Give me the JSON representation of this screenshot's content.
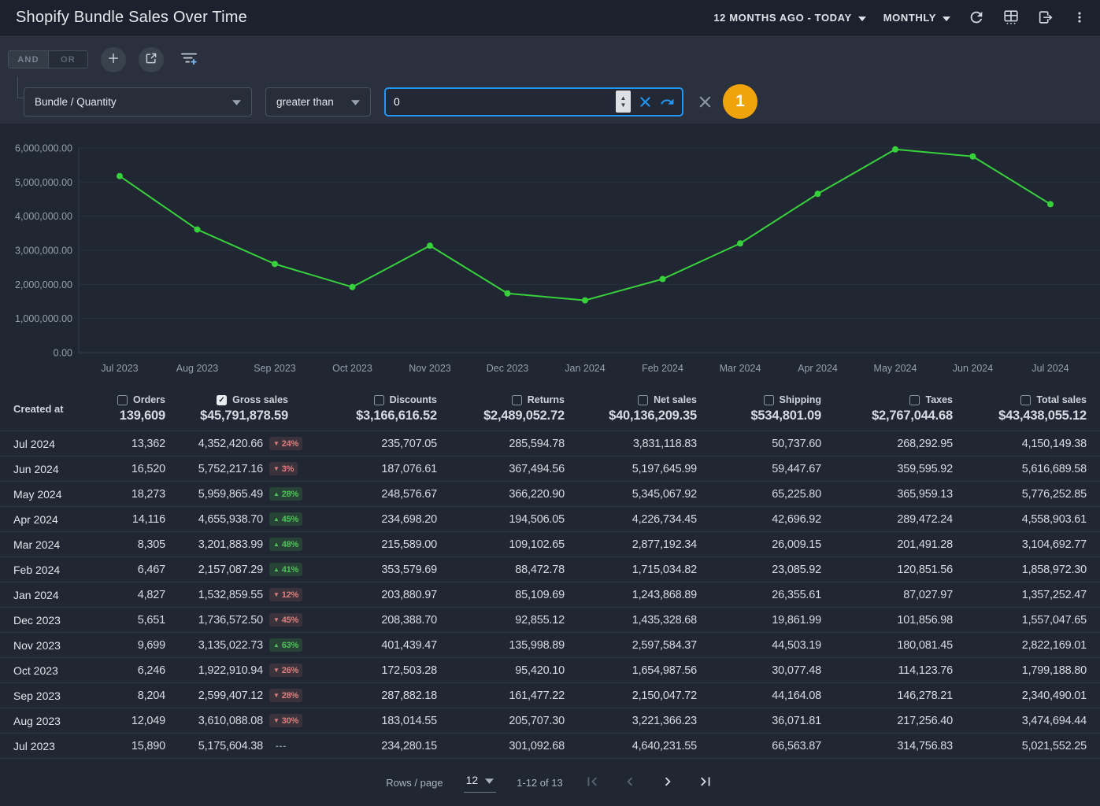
{
  "topbar": {
    "title": "Shopify Bundle Sales Over Time",
    "date_range": "12 MONTHS AGO - TODAY",
    "granularity": "MONTHLY"
  },
  "filter_bar": {
    "and_label": "AND",
    "or_label": "OR",
    "field_select": "Bundle / Quantity",
    "operator_select": "greater than",
    "value_input": "0",
    "active_filter_count": "1"
  },
  "chart_data": {
    "type": "line",
    "title": "Shopify Bundle Sales Over Time",
    "x": [
      "Jul 2023",
      "Aug 2023",
      "Sep 2023",
      "Oct 2023",
      "Nov 2023",
      "Dec 2023",
      "Jan 2024",
      "Feb 2024",
      "Mar 2024",
      "Apr 2024",
      "May 2024",
      "Jun 2024",
      "Jul 2024"
    ],
    "series": [
      {
        "name": "Gross sales",
        "color": "#37d13c",
        "values": [
          5175604.38,
          3610088.08,
          2599407.12,
          1922910.94,
          3135022.73,
          1736572.5,
          1532859.55,
          2157087.29,
          3201883.99,
          4655938.7,
          5959865.49,
          5752217.16,
          4352420.66
        ]
      }
    ],
    "ylim": [
      0,
      6000000
    ],
    "y_ticks": [
      "6,000,000.00",
      "5,000,000.00",
      "4,000,000.00",
      "3,000,000.00",
      "2,000,000.00",
      "1,000,000.00",
      "0.00"
    ],
    "grid": true,
    "legend": "none"
  },
  "table": {
    "row_header": "Created at",
    "no_change_placeholder": "---",
    "columns": [
      {
        "key": "orders",
        "label": "Orders",
        "total": "139,609",
        "checked": false
      },
      {
        "key": "gross_sales",
        "label": "Gross sales",
        "total": "$45,791,878.59",
        "checked": true
      },
      {
        "key": "discounts",
        "label": "Discounts",
        "total": "$3,166,616.52",
        "checked": false
      },
      {
        "key": "returns",
        "label": "Returns",
        "total": "$2,489,052.72",
        "checked": false
      },
      {
        "key": "net_sales",
        "label": "Net sales",
        "total": "$40,136,209.35",
        "checked": false
      },
      {
        "key": "shipping",
        "label": "Shipping",
        "total": "$534,801.09",
        "checked": false
      },
      {
        "key": "taxes",
        "label": "Taxes",
        "total": "$2,767,044.68",
        "checked": false
      },
      {
        "key": "total_sales",
        "label": "Total sales",
        "total": "$43,438,055.12",
        "checked": false
      }
    ],
    "rows": [
      {
        "created_at": "Jul 2024",
        "orders": "13,362",
        "gross_sales": "4,352,420.66",
        "change": {
          "dir": "down",
          "label": "24%"
        },
        "discounts": "235,707.05",
        "returns": "285,594.78",
        "net_sales": "3,831,118.83",
        "shipping": "50,737.60",
        "taxes": "268,292.95",
        "total_sales": "4,150,149.38"
      },
      {
        "created_at": "Jun 2024",
        "orders": "16,520",
        "gross_sales": "5,752,217.16",
        "change": {
          "dir": "down",
          "label": "3%"
        },
        "discounts": "187,076.61",
        "returns": "367,494.56",
        "net_sales": "5,197,645.99",
        "shipping": "59,447.67",
        "taxes": "359,595.92",
        "total_sales": "5,616,689.58"
      },
      {
        "created_at": "May 2024",
        "orders": "18,273",
        "gross_sales": "5,959,865.49",
        "change": {
          "dir": "up",
          "label": "28%"
        },
        "discounts": "248,576.67",
        "returns": "366,220.90",
        "net_sales": "5,345,067.92",
        "shipping": "65,225.80",
        "taxes": "365,959.13",
        "total_sales": "5,776,252.85"
      },
      {
        "created_at": "Apr 2024",
        "orders": "14,116",
        "gross_sales": "4,655,938.70",
        "change": {
          "dir": "up",
          "label": "45%"
        },
        "discounts": "234,698.20",
        "returns": "194,506.05",
        "net_sales": "4,226,734.45",
        "shipping": "42,696.92",
        "taxes": "289,472.24",
        "total_sales": "4,558,903.61"
      },
      {
        "created_at": "Mar 2024",
        "orders": "8,305",
        "gross_sales": "3,201,883.99",
        "change": {
          "dir": "up",
          "label": "48%"
        },
        "discounts": "215,589.00",
        "returns": "109,102.65",
        "net_sales": "2,877,192.34",
        "shipping": "26,009.15",
        "taxes": "201,491.28",
        "total_sales": "3,104,692.77"
      },
      {
        "created_at": "Feb 2024",
        "orders": "6,467",
        "gross_sales": "2,157,087.29",
        "change": {
          "dir": "up",
          "label": "41%"
        },
        "discounts": "353,579.69",
        "returns": "88,472.78",
        "net_sales": "1,715,034.82",
        "shipping": "23,085.92",
        "taxes": "120,851.56",
        "total_sales": "1,858,972.30"
      },
      {
        "created_at": "Jan 2024",
        "orders": "4,827",
        "gross_sales": "1,532,859.55",
        "change": {
          "dir": "down",
          "label": "12%"
        },
        "discounts": "203,880.97",
        "returns": "85,109.69",
        "net_sales": "1,243,868.89",
        "shipping": "26,355.61",
        "taxes": "87,027.97",
        "total_sales": "1,357,252.47"
      },
      {
        "created_at": "Dec 2023",
        "orders": "5,651",
        "gross_sales": "1,736,572.50",
        "change": {
          "dir": "down",
          "label": "45%"
        },
        "discounts": "208,388.70",
        "returns": "92,855.12",
        "net_sales": "1,435,328.68",
        "shipping": "19,861.99",
        "taxes": "101,856.98",
        "total_sales": "1,557,047.65"
      },
      {
        "created_at": "Nov 2023",
        "orders": "9,699",
        "gross_sales": "3,135,022.73",
        "change": {
          "dir": "up",
          "label": "63%"
        },
        "discounts": "401,439.47",
        "returns": "135,998.89",
        "net_sales": "2,597,584.37",
        "shipping": "44,503.19",
        "taxes": "180,081.45",
        "total_sales": "2,822,169.01"
      },
      {
        "created_at": "Oct 2023",
        "orders": "6,246",
        "gross_sales": "1,922,910.94",
        "change": {
          "dir": "down",
          "label": "26%"
        },
        "discounts": "172,503.28",
        "returns": "95,420.10",
        "net_sales": "1,654,987.56",
        "shipping": "30,077.48",
        "taxes": "114,123.76",
        "total_sales": "1,799,188.80"
      },
      {
        "created_at": "Sep 2023",
        "orders": "8,204",
        "gross_sales": "2,599,407.12",
        "change": {
          "dir": "down",
          "label": "28%"
        },
        "discounts": "287,882.18",
        "returns": "161,477.22",
        "net_sales": "2,150,047.72",
        "shipping": "44,164.08",
        "taxes": "146,278.21",
        "total_sales": "2,340,490.01"
      },
      {
        "created_at": "Aug 2023",
        "orders": "12,049",
        "gross_sales": "3,610,088.08",
        "change": {
          "dir": "down",
          "label": "30%"
        },
        "discounts": "183,014.55",
        "returns": "205,707.30",
        "net_sales": "3,221,366.23",
        "shipping": "36,071.81",
        "taxes": "217,256.40",
        "total_sales": "3,474,694.44"
      },
      {
        "created_at": "Jul 2023",
        "orders": "15,890",
        "gross_sales": "5,175,604.38",
        "change": null,
        "discounts": "234,280.15",
        "returns": "301,092.68",
        "net_sales": "4,640,231.55",
        "shipping": "66,563.87",
        "taxes": "314,756.83",
        "total_sales": "5,021,552.25"
      }
    ]
  },
  "footer": {
    "rows_per_page_label": "Rows / page",
    "rows_per_page_value": "12",
    "range_label": "1-12 of 13"
  },
  "colors": {
    "accent_blue": "#2196f3",
    "line_green": "#37d13c",
    "badge_up_green": "#4cc455",
    "badge_down_red": "#e07f7f",
    "warning_orange": "#f0a30a",
    "topbar_bg": "#1c222d",
    "filter_panel_bg": "#2a303d",
    "main_bg": "#202732"
  }
}
